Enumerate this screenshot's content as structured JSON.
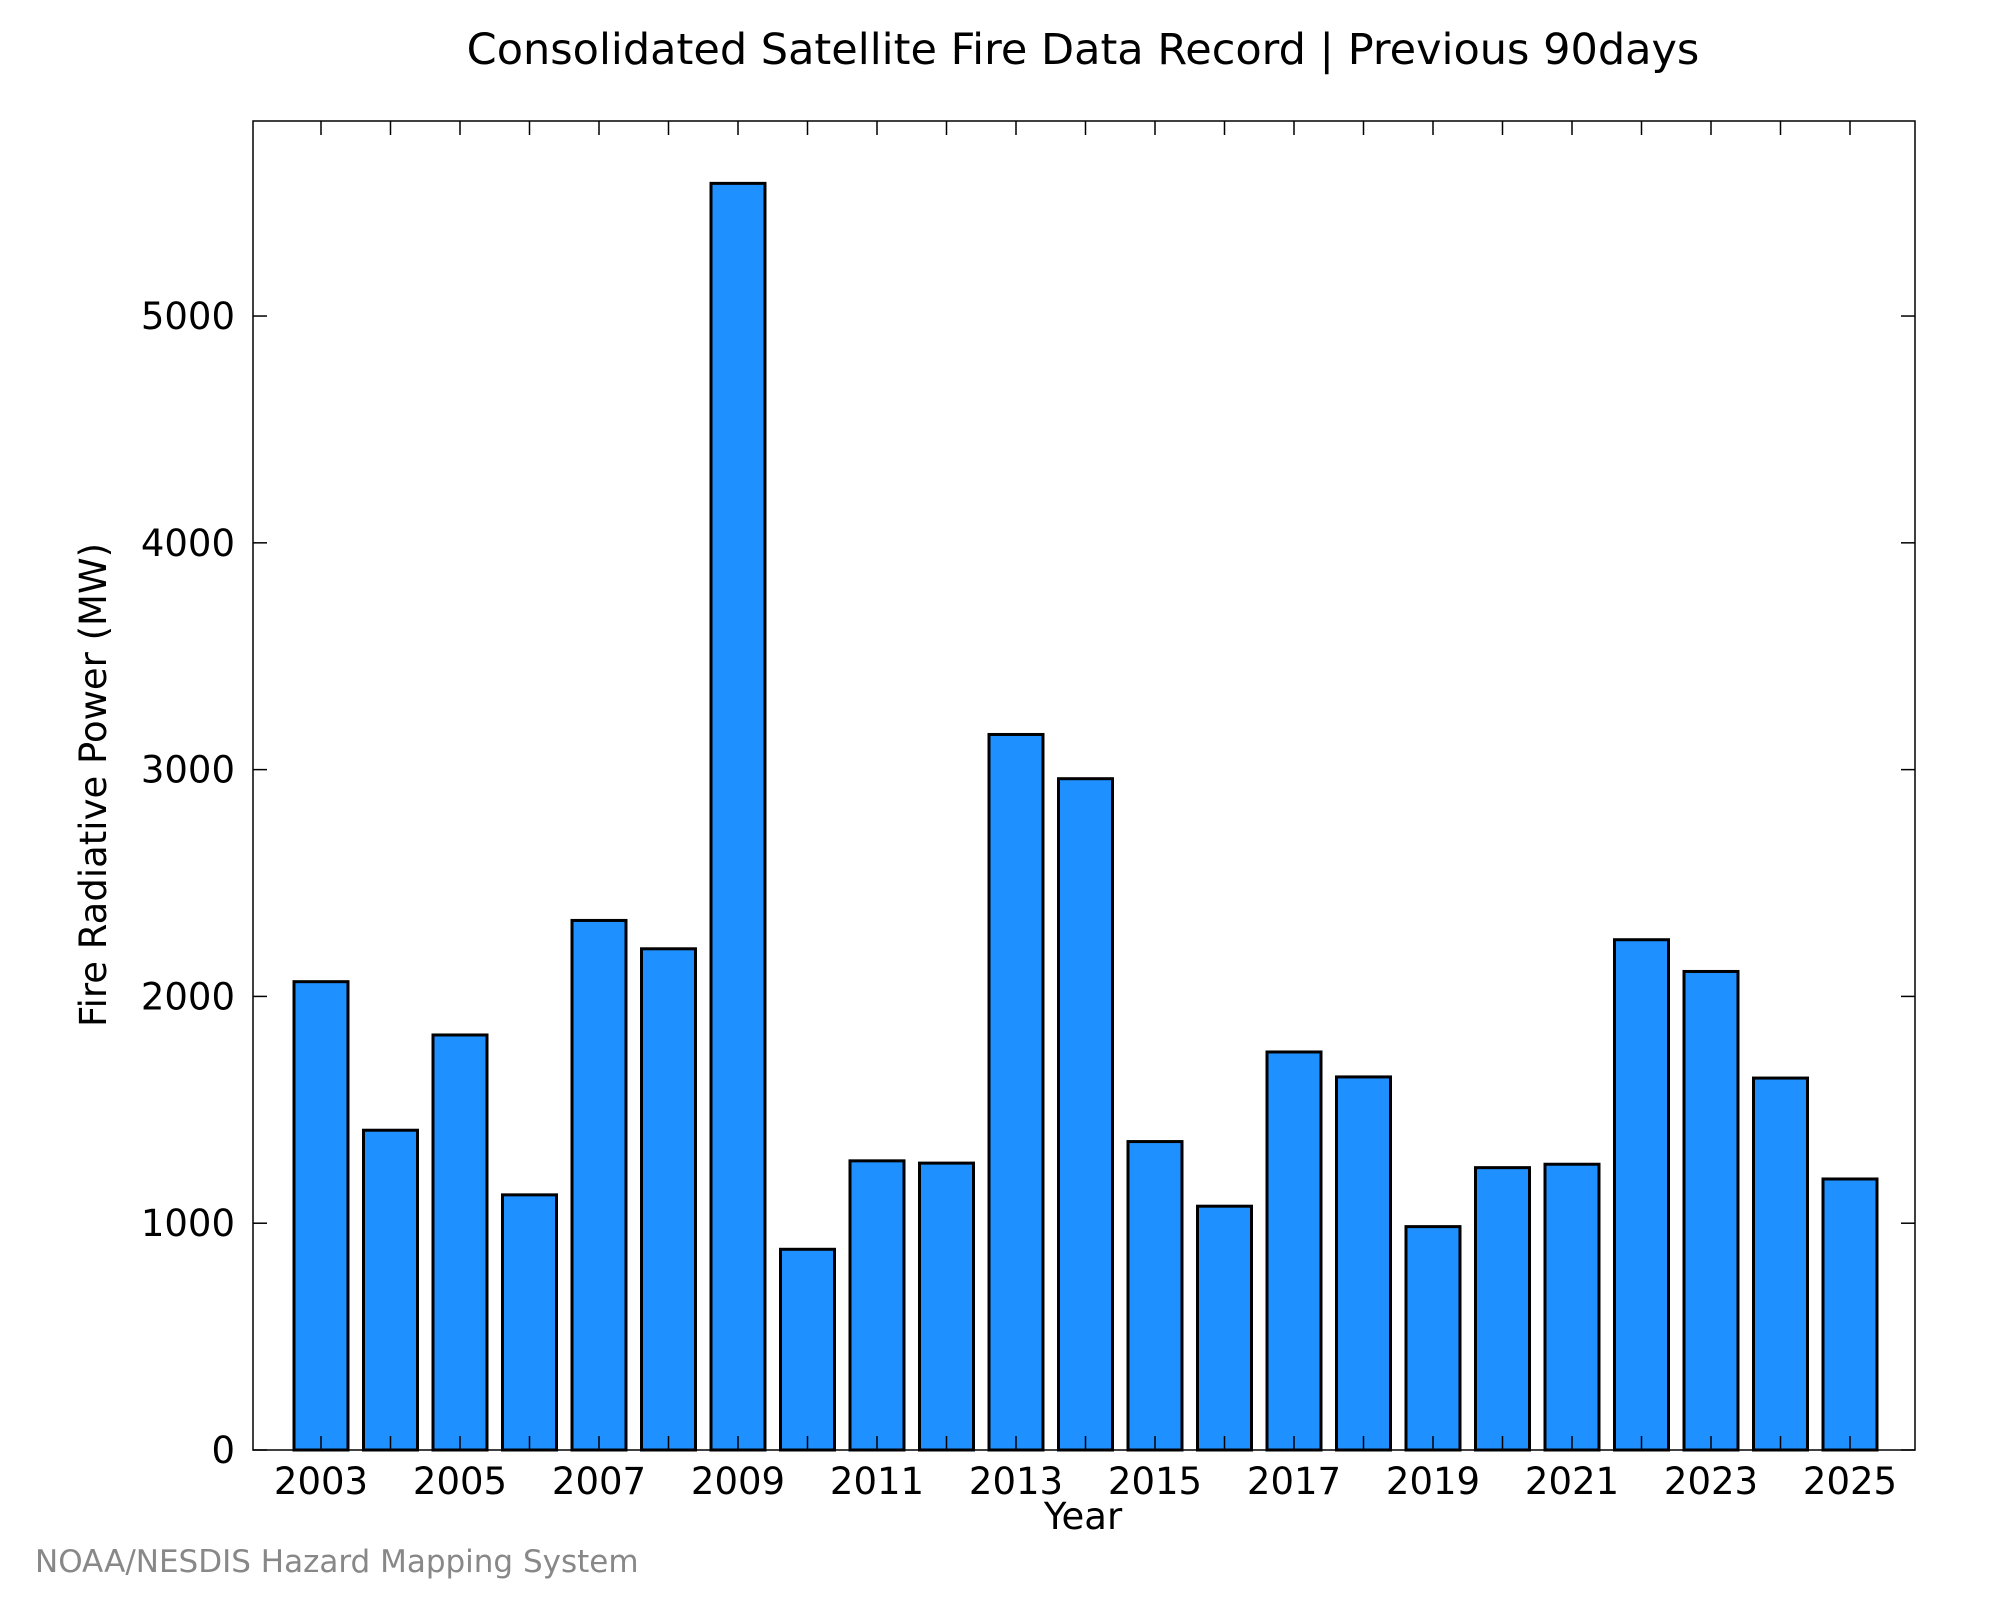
{
  "chart_data": {
    "type": "bar",
    "title": "Consolidated Satellite Fire Data Record | Previous 90days",
    "xlabel": "Year",
    "ylabel": "Fire Radiative Power (MW)",
    "categories": [
      "2003",
      "2004",
      "2005",
      "2006",
      "2007",
      "2008",
      "2009",
      "2010",
      "2011",
      "2012",
      "2013",
      "2014",
      "2015",
      "2016",
      "2017",
      "2018",
      "2019",
      "2020",
      "2021",
      "2022",
      "2023",
      "2024",
      "2025"
    ],
    "values": [
      2065,
      1410,
      1830,
      1125,
      2335,
      2210,
      5585,
      885,
      1275,
      1265,
      3155,
      2960,
      1360,
      1075,
      1755,
      1645,
      985,
      1245,
      1260,
      2250,
      2110,
      1640,
      1195
    ],
    "xticks": [
      "2003",
      "2005",
      "2007",
      "2009",
      "2011",
      "2013",
      "2015",
      "2017",
      "2019",
      "2021",
      "2023",
      "2025"
    ],
    "yticks": [
      "0",
      "1000",
      "2000",
      "3000",
      "4000",
      "5000"
    ],
    "ylim": [
      0,
      5860
    ],
    "grid": false,
    "bar_color": "#1e90ff",
    "bar_edge_color": "#000000"
  },
  "credit": "NOAA/NESDIS Hazard Mapping System"
}
